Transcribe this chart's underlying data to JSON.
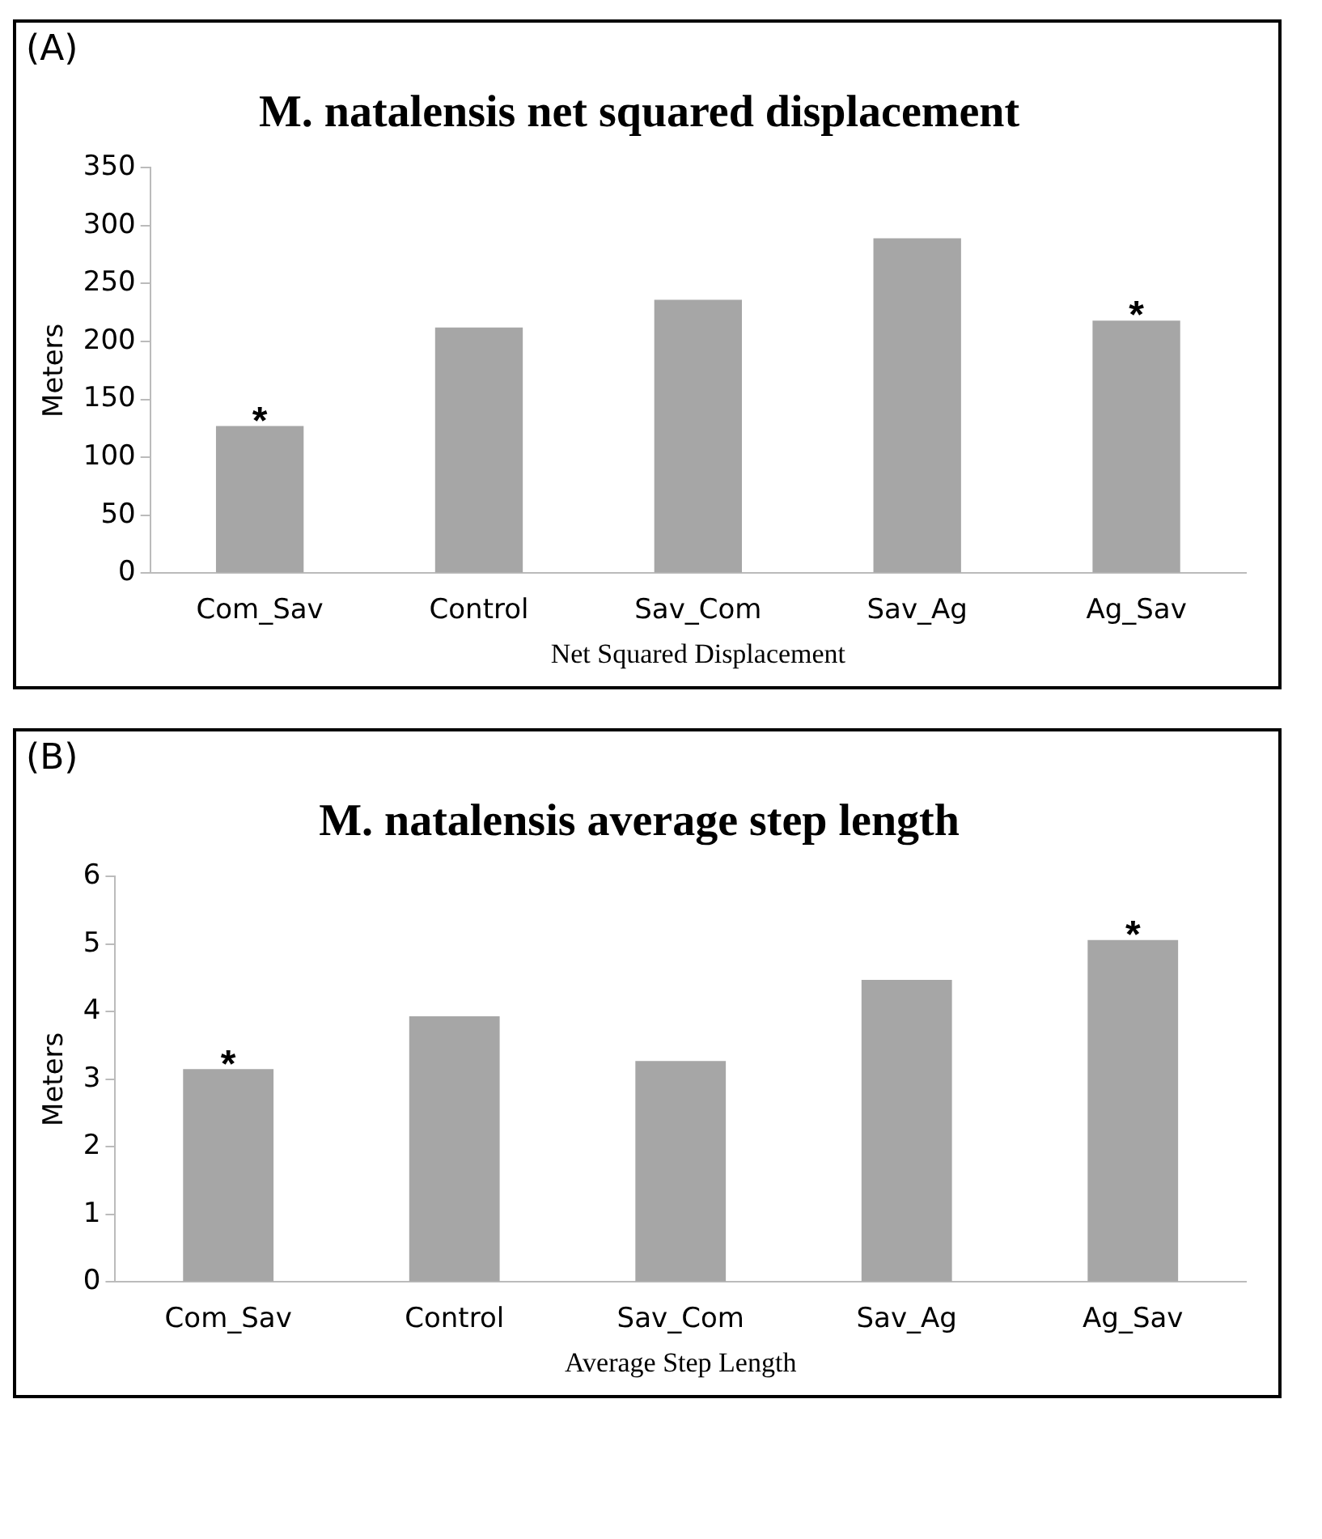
{
  "chart_data": [
    {
      "type": "bar",
      "title": "M. natalensis net squared displacement",
      "xlabel": "Net Squared Displacement",
      "ylabel": "Meters",
      "categories": [
        "Com_Sav",
        "Control",
        "Sav_Com",
        "Sav_Ag",
        "Ag_Sav"
      ],
      "values": [
        127,
        212,
        236,
        289,
        218
      ],
      "color": "#a6a6a6",
      "ylim": [
        0,
        350
      ],
      "yticks": [
        0,
        50,
        100,
        150,
        200,
        250,
        300,
        350
      ],
      "grid": false,
      "annotations": [
        "(A)",
        {
          "text": "*",
          "x": "Com_Sav",
          "y": 127
        },
        {
          "text": "*",
          "x": "Ag_Sav",
          "y": 218
        }
      ]
    },
    {
      "type": "bar",
      "title": "M. natalensis average step length",
      "xlabel": "Average Step Length",
      "ylabel": "Meters",
      "categories": [
        "Com_Sav",
        "Control",
        "Sav_Com",
        "Sav_Ag",
        "Ag_Sav"
      ],
      "values": [
        3.15,
        3.93,
        3.27,
        4.47,
        5.06
      ],
      "color": "#a6a6a6",
      "ylim": [
        0,
        6
      ],
      "yticks": [
        0,
        1,
        2,
        3,
        4,
        5,
        6
      ],
      "grid": false,
      "annotations": [
        "(B)",
        {
          "text": "*",
          "x": "Com_Sav",
          "y": 3.15
        },
        {
          "text": "*",
          "x": "Ag_Sav",
          "y": 5.06
        }
      ]
    }
  ]
}
